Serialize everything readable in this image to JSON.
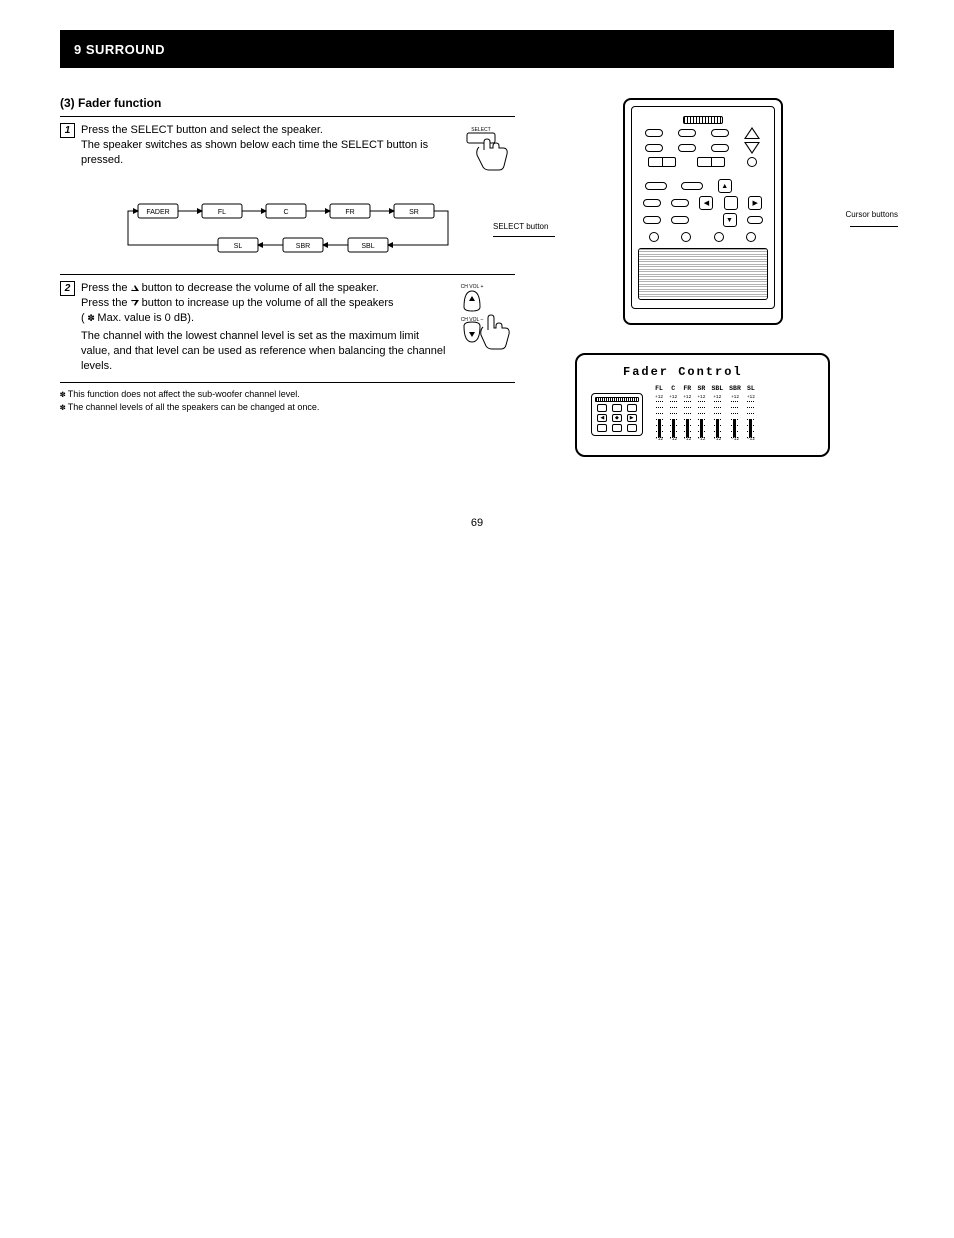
{
  "header": {
    "bar_text": "9  SURROUND"
  },
  "section": {
    "title": "(3) Fader function",
    "steps": {
      "s1": {
        "num": "1",
        "text": "Press the SELECT button and select the speaker.\nThe speaker switches as shown below each time the SELECT button is pressed.",
        "diagram_label": "SELECT"
      },
      "flow": {
        "row1": [
          "FADER",
          "FL",
          "C",
          "FR",
          "SR"
        ],
        "row2": [
          "SL",
          "SBR",
          "SBL"
        ]
      },
      "s2": {
        "num": "2",
        "lines": [
          "Press the      button to decrease the volume of all the speaker.",
          "Press the      button to increase up the volume of all the speakers",
          "(     Max. value is 0 dB).",
          "The channel with the lowest channel level is set as the maximum limit value, and that level can be used as reference when balancing the channel levels."
        ],
        "diagram_labels": {
          "ch_up": "CH VOL +",
          "ch_dn": "CH VOL –"
        }
      },
      "notes": [
        "This function does not affect the sub-woofer channel level.",
        "The channel levels of all the speakers can be changed at once."
      ]
    }
  },
  "remote": {
    "label_left": "SELECT button",
    "label_right": "Cursor buttons"
  },
  "fader_display": {
    "title": "Fader Control",
    "channels": [
      "FL",
      "C",
      "FR",
      "SR",
      "SBL",
      "SBR",
      "SL"
    ],
    "top_scale": "+12",
    "bottom_scale": "-12",
    "mid_scale": "0",
    "values": [
      0,
      0,
      0,
      0,
      0,
      0,
      0
    ]
  },
  "page_num": "69",
  "style": {
    "bg": "#ffffff",
    "bar_bg": "#000000",
    "bar_fg": "#ffffff",
    "text": "#000000",
    "font_body": "11px",
    "font_small": "9px"
  }
}
